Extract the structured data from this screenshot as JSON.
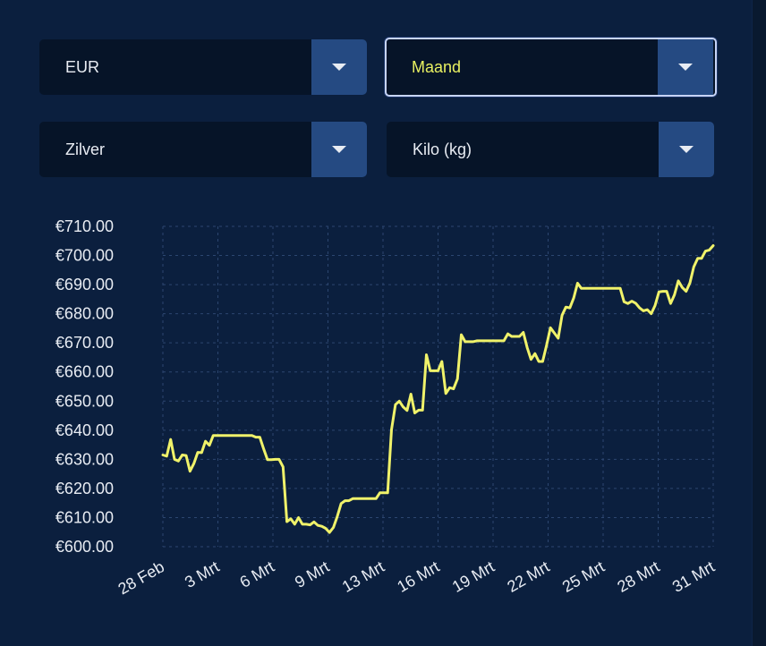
{
  "colors": {
    "background": "#0b1f3e",
    "select_bg": "#061428",
    "dropdown_button": "#254a82",
    "line": "#f0f26a",
    "text": "#e8ecf3",
    "selected_text": "#e8f061",
    "grid": "#2c4670"
  },
  "selectors": {
    "currency": {
      "value": "EUR",
      "icon": "chevron-down-icon"
    },
    "period": {
      "value": "Maand",
      "icon": "chevron-down-icon",
      "focused": true
    },
    "metal": {
      "value": "Zilver",
      "icon": "chevron-down-icon"
    },
    "unit": {
      "value": "Kilo (kg)",
      "icon": "chevron-down-icon"
    }
  },
  "chart_data": {
    "type": "line",
    "title": "",
    "xlabel": "",
    "ylabel": "",
    "grid": true,
    "ylim": [
      600,
      710
    ],
    "y_ticks": [
      "€710.00",
      "€700.00",
      "€690.00",
      "€680.00",
      "€670.00",
      "€660.00",
      "€650.00",
      "€640.00",
      "€630.00",
      "€620.00",
      "€610.00",
      "€600.00"
    ],
    "x_ticks": [
      "28 Feb",
      "3 Mrt",
      "6 Mrt",
      "9 Mrt",
      "13 Mrt",
      "16 Mrt",
      "19 Mrt",
      "22 Mrt",
      "25 Mrt",
      "28 Mrt",
      "31 Mrt"
    ],
    "series": [
      {
        "values": [
          631.5,
          631.1,
          636.8,
          630.0,
          629.4,
          631.5,
          631.3,
          625.9,
          628.5,
          632.4,
          632.3,
          636.2,
          634.8,
          638.2,
          638.2,
          638.2,
          638.2,
          638.2,
          638.2,
          638.2,
          638.2,
          638.2,
          638.2,
          638.2,
          637.6,
          637.6,
          633.6,
          629.9,
          629.9,
          630.0,
          630.0,
          627.4,
          608.6,
          609.6,
          607.7,
          610.0,
          607.7,
          607.7,
          607.5,
          608.5,
          607.3,
          607.0,
          606.3,
          604.9,
          606.6,
          610.4,
          614.8,
          615.8,
          615.8,
          616.5,
          616.5,
          616.5,
          616.5,
          616.5,
          616.5,
          616.5,
          618.5,
          618.5,
          618.5,
          640.2,
          648.8,
          650.0,
          648.0,
          646.8,
          652.4,
          645.9,
          646.9,
          646.9,
          665.9,
          660.4,
          660.4,
          660.4,
          663.6,
          652.6,
          654.6,
          654.2,
          657.6,
          672.8,
          670.4,
          670.4,
          670.4,
          670.7,
          670.7,
          670.7,
          670.7,
          670.7,
          670.7,
          670.7,
          670.7,
          673.1,
          672.2,
          672.2,
          672.2,
          673.6,
          668.4,
          664.3,
          666.3,
          663.6,
          663.6,
          669.2,
          675.2,
          673.4,
          671.6,
          679.5,
          682.3,
          682.0,
          685.4,
          690.5,
          688.7,
          688.7,
          688.7,
          688.7,
          688.7,
          688.7,
          688.7,
          688.7,
          688.7,
          688.7,
          688.7,
          684.1,
          683.5,
          684.3,
          683.6,
          682.0,
          681.0,
          681.4,
          680.0,
          682.8,
          687.5,
          687.7,
          687.7,
          683.5,
          686.5,
          691.3,
          689.0,
          687.7,
          690.6,
          696.1,
          699.0,
          699.0,
          701.5,
          701.9,
          703.4
        ]
      }
    ]
  }
}
